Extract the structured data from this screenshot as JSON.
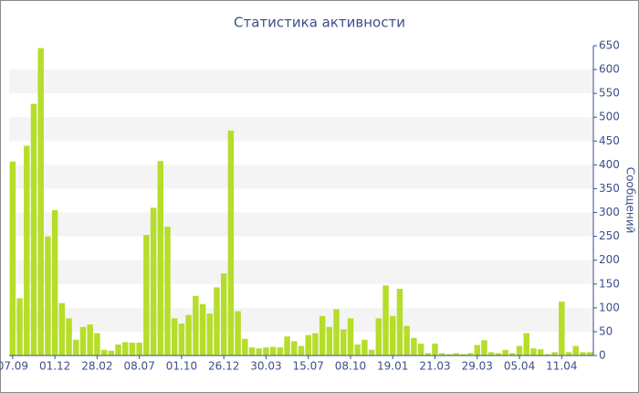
{
  "chart_data": {
    "type": "bar",
    "title": "Статистика активности",
    "y_label": "Сообщений",
    "categories": [
      "07.09",
      null,
      null,
      null,
      null,
      null,
      "01.12",
      null,
      null,
      null,
      null,
      null,
      "28.02",
      null,
      null,
      null,
      null,
      null,
      "08.07",
      null,
      null,
      null,
      null,
      null,
      "01.10",
      null,
      null,
      null,
      null,
      null,
      "26.12",
      null,
      null,
      null,
      null,
      null,
      "30.03",
      null,
      null,
      null,
      null,
      null,
      "15.07",
      null,
      null,
      null,
      null,
      null,
      "08.10",
      null,
      null,
      null,
      null,
      null,
      "19.01",
      null,
      null,
      null,
      null,
      null,
      "21.03",
      null,
      null,
      null,
      null,
      null,
      "29.03",
      null,
      null,
      null,
      null,
      null,
      "05.04",
      null,
      null,
      null,
      null,
      null,
      "11.04",
      null,
      null,
      null,
      null
    ],
    "values": [
      407,
      120,
      440,
      528,
      645,
      250,
      305,
      110,
      78,
      33,
      60,
      65,
      47,
      12,
      10,
      23,
      28,
      27,
      27,
      253,
      310,
      408,
      270,
      78,
      67,
      85,
      125,
      108,
      88,
      143,
      172,
      472,
      93,
      35,
      17,
      15,
      17,
      18,
      17,
      40,
      30,
      20,
      43,
      47,
      83,
      60,
      97,
      55,
      78,
      23,
      33,
      12,
      78,
      147,
      83,
      140,
      62,
      37,
      25,
      5,
      25,
      5,
      3,
      5,
      3,
      5,
      22,
      32,
      7,
      5,
      12,
      5,
      20,
      47,
      15,
      13,
      3,
      7,
      113,
      7,
      20,
      7,
      7
    ],
    "color": "#b5dd2a",
    "ylim": [
      0,
      650
    ],
    "yticks": [
      0,
      50,
      100,
      150,
      200,
      250,
      300,
      350,
      400,
      450,
      500,
      550,
      600,
      650
    ],
    "grid": true
  }
}
